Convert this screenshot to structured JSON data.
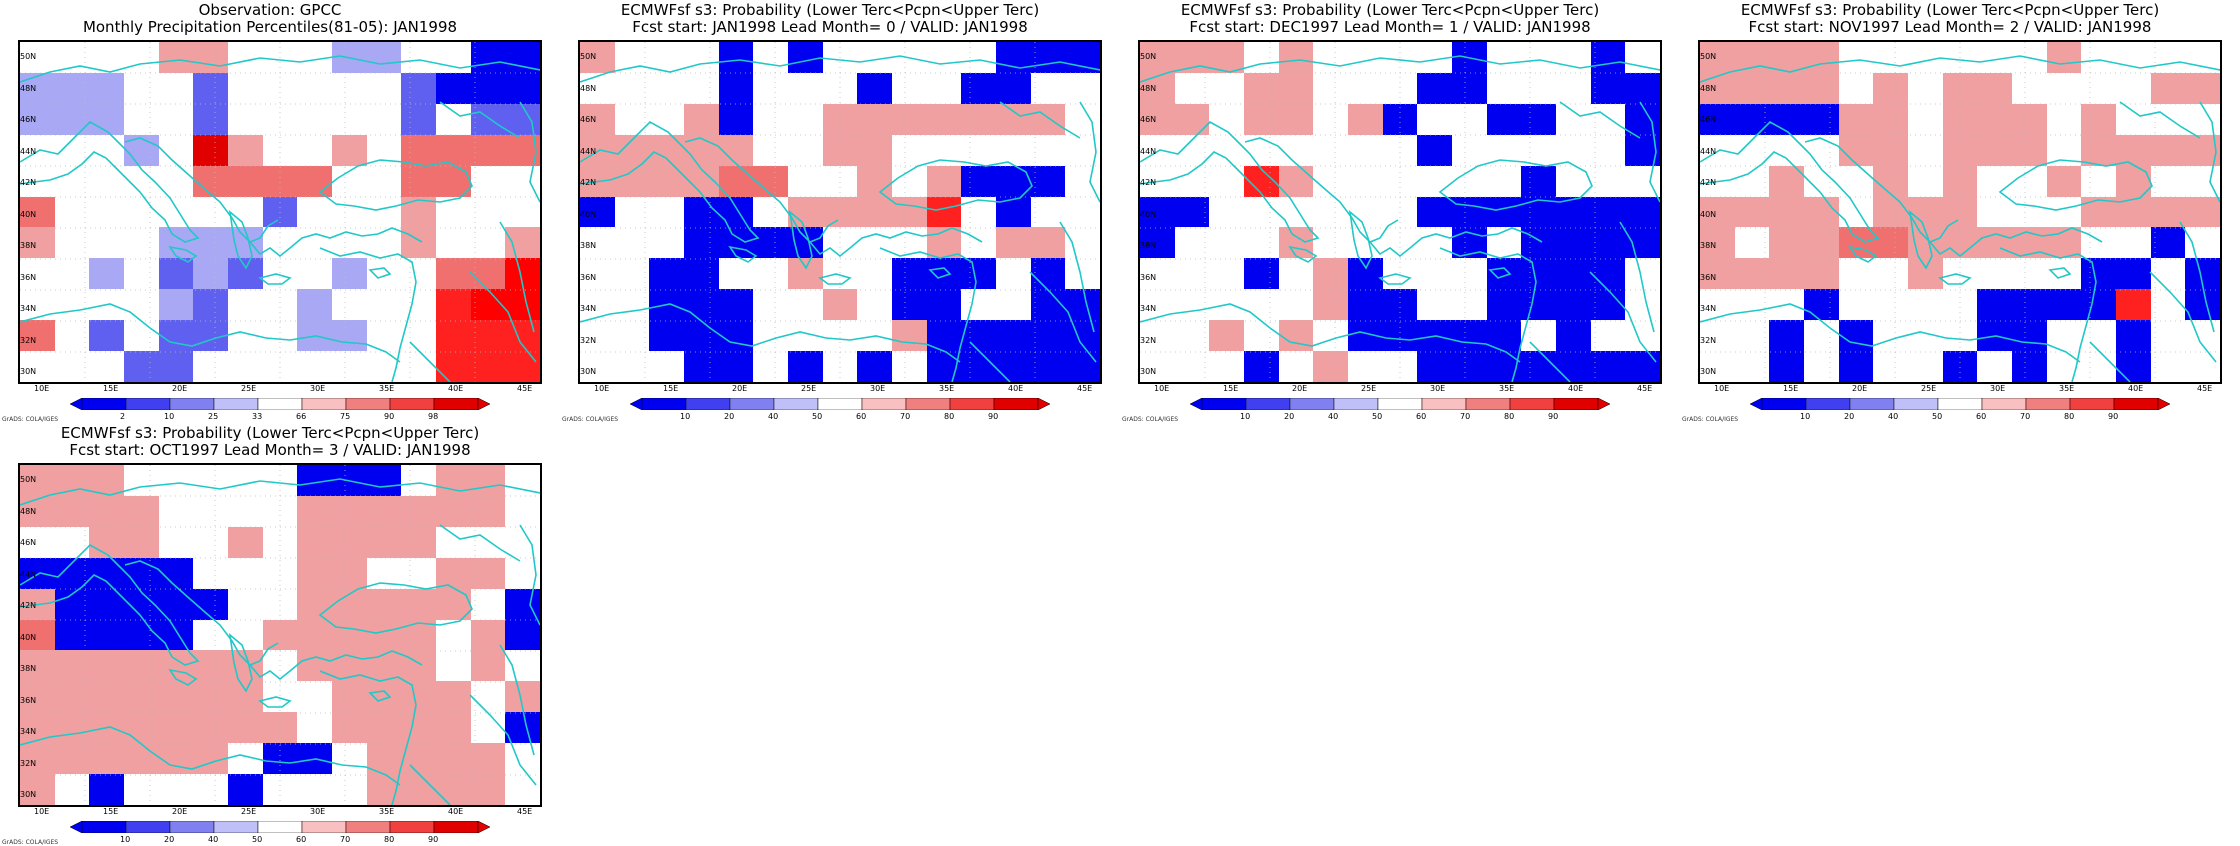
{
  "colors": {
    "red": "#ff2020",
    "lightred": "#f07070",
    "pink": "#f0a0a0",
    "blue": "#0000f0",
    "medblue": "#6060f0",
    "lightblue": "#a8a8f4",
    "coast": "#20c8c8"
  },
  "lat_labels": [
    "50N",
    "48N",
    "46N",
    "44N",
    "42N",
    "40N",
    "38N",
    "36N",
    "34N",
    "32N",
    "30N"
  ],
  "lon_labels": [
    "10E",
    "15E",
    "20E",
    "25E",
    "30E",
    "35E",
    "40E",
    "45E"
  ],
  "grads_credit": "GrADS: COLA/IGES",
  "panels": [
    {
      "title1": "Observation: GPCC",
      "title2": "Monthly Precipitation Percentiles(81-05): JAN1998",
      "colorbar": [
        "2",
        "10",
        "25",
        "33",
        "66",
        "75",
        "90",
        "98"
      ],
      "grid": [
        "....pp...BB..AA",
        "LLL..C.....CAAA",
        "LLL..C.....C.CC",
        "...L.zp..p.rrrr",
        ".....rrrr..rr..",
        "r......C...p...",
        "p...BBB....p..p",
        "..L.CBC..L..rrx",
        "....BC..L...Rxx",
        "r.C.CC..BB..RRR",
        "...CC.......RRR"
      ],
      "legend": [
        "2",
        "10",
        "25",
        "33",
        "66",
        "75",
        "90",
        "98"
      ]
    },
    {
      "title1": "ECMWFsf s3: Probability (Lower Terc<Pcpn<Upper Terc)",
      "title2": "Fcst start: JAN1998   Lead Month= 0 / VALID: JAN1998",
      "colorbar": [
        "10",
        "20",
        "40",
        "50",
        "60",
        "70",
        "80",
        "90"
      ],
      "grid": [
        "p...A.A.....AAA",
        "....A...A..AA..",
        "p..pA..ppppppp.",
        "ppppp..pp......",
        "pppprr..p.pAAA.",
        "A..AA.ppppR.A..",
        "...AAAA...p.pp.",
        "..AA..p..AAA.A.",
        "..AAA..p.AA..AA",
        "..AAA....pAAAAA",
        "...AA.A.A.AAAAA"
      ],
      "legend": [
        "10",
        "20",
        "40",
        "50",
        "60",
        "70",
        "80",
        "90"
      ]
    },
    {
      "title1": "ECMWFsf s3: Probability (Lower Terc<Pcpn<Upper Terc)",
      "title2": "Fcst start: DEC1997   Lead Month= 1 / VALID: JAN1998",
      "colorbar": [
        "10",
        "20",
        "40",
        "50",
        "60",
        "70",
        "80",
        "90"
      ],
      "grid": [
        "ppp.p....A...A.",
        "p..pp...AA...AA",
        "pp.pp.pA..AA..A",
        "........A.....A",
        "...Rp......A...",
        "AA......AAAAAAA",
        "A...p....A.AAAA",
        "...A.pA...AAAA.",
        ".....pAA..AAAA.",
        "..p.p.AAAAA.A..",
        "...A.p..AAAAAAA"
      ],
      "legend": [
        "10",
        "20",
        "40",
        "50",
        "60",
        "70",
        "80",
        "90"
      ]
    },
    {
      "title1": "ECMWFsf s3: Probability (Lower Terc<Pcpn<Upper Terc)",
      "title2": "Fcst start: NOV1997   Lead Month= 2 / VALID: JAN1998",
      "colorbar": [
        "10",
        "20",
        "40",
        "50",
        "60",
        "70",
        "80",
        "90"
      ],
      "grid": [
        "pppp......p....",
        "pppp.p.pp....pp",
        "AAAApp.ppp.p...",
        "....pp.ppp.pppp",
        "..p..p.p..p.p..",
        "pppp.ppp...pppp",
        "p.pprrppppp..A.",
        "pppp..p....AA.A",
        "...A....AAAAR.A",
        "..A.A...AA..A..",
        "..A.A..A.A..A.."
      ],
      "legend": [
        "10",
        "20",
        "40",
        "50",
        "60",
        "70",
        "80",
        "90"
      ]
    },
    {
      "title1": "ECMWFsf s3: Probability (Lower Terc<Pcpn<Upper Terc)",
      "title2": "Fcst start: OCT1997   Lead Month= 3 / VALID: JAN1998",
      "colorbar": [
        "10",
        "20",
        "40",
        "50",
        "60",
        "70",
        "80",
        "90"
      ],
      "grid": [
        "ppp.....AAA.pp.",
        "pppp....pppppp.",
        "..pp..p.pppp...",
        "AAAAA...pp..pp.",
        "pAAAAA..ppppp.A",
        "rAAAA..ppppp.pA",
        "ppppppp.pppp.p.",
        "ppppppp..pppp.p",
        "pppppppp.pppp.A",
        "pppppp.AA.pppp.",
        "p.A...A...pppp."
      ],
      "legend": [
        "10",
        "20",
        "40",
        "50",
        "60",
        "70",
        "80",
        "90"
      ]
    }
  ]
}
